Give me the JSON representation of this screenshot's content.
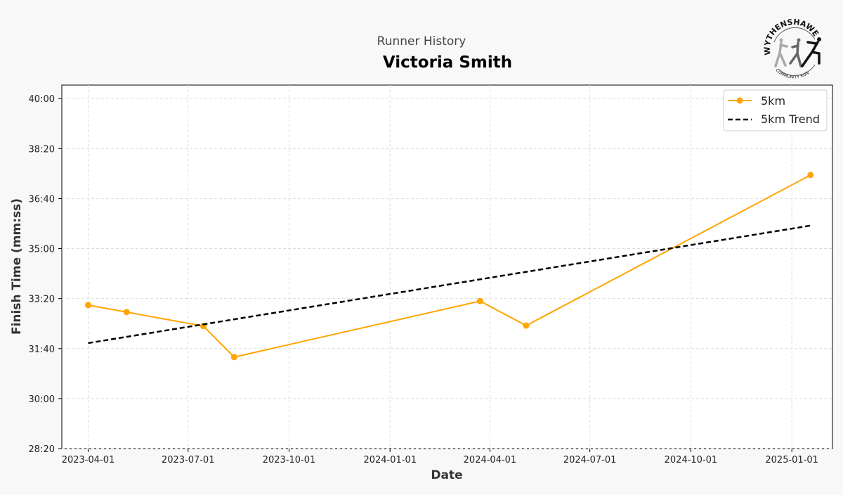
{
  "header": {
    "subtitle": "Runner History",
    "title": "Victoria Smith",
    "logo_text_top": "WYTHENSHAWE",
    "logo_text_bottom": "COMMUNITY RUN"
  },
  "chart_data": {
    "type": "line",
    "title": "Victoria Smith",
    "subtitle": "Runner History",
    "xlabel": "Date",
    "ylabel": "Finish Time (mm:ss)",
    "x_ticks": [
      "2023-04-01",
      "2023-07-01",
      "2023-10-01",
      "2024-01-01",
      "2024-04-01",
      "2024-07-01",
      "2024-10-01",
      "2025-01-01"
    ],
    "y_ticks": [
      "28:20",
      "30:00",
      "31:40",
      "33:20",
      "35:00",
      "36:40",
      "38:20",
      "40:00"
    ],
    "xlim": [
      "2023-03-08",
      "2025-02-07"
    ],
    "ylim": [
      "28:20",
      "40:27"
    ],
    "grid": true,
    "legend_position": "top-right",
    "series": [
      {
        "name": "5km",
        "color": "#ffa500",
        "style": "solid-with-markers",
        "x": [
          "2023-04-01",
          "2023-05-06",
          "2023-07-15",
          "2023-08-12",
          "2024-03-23",
          "2024-05-04",
          "2025-01-18"
        ],
        "y": [
          "33:07",
          "32:53",
          "32:25",
          "31:23",
          "33:15",
          "32:26",
          "37:27"
        ]
      },
      {
        "name": "5km Trend",
        "color": "#000000",
        "style": "dashed",
        "x": [
          "2023-04-01",
          "2025-01-18"
        ],
        "y": [
          "31:51",
          "35:46"
        ]
      }
    ]
  }
}
